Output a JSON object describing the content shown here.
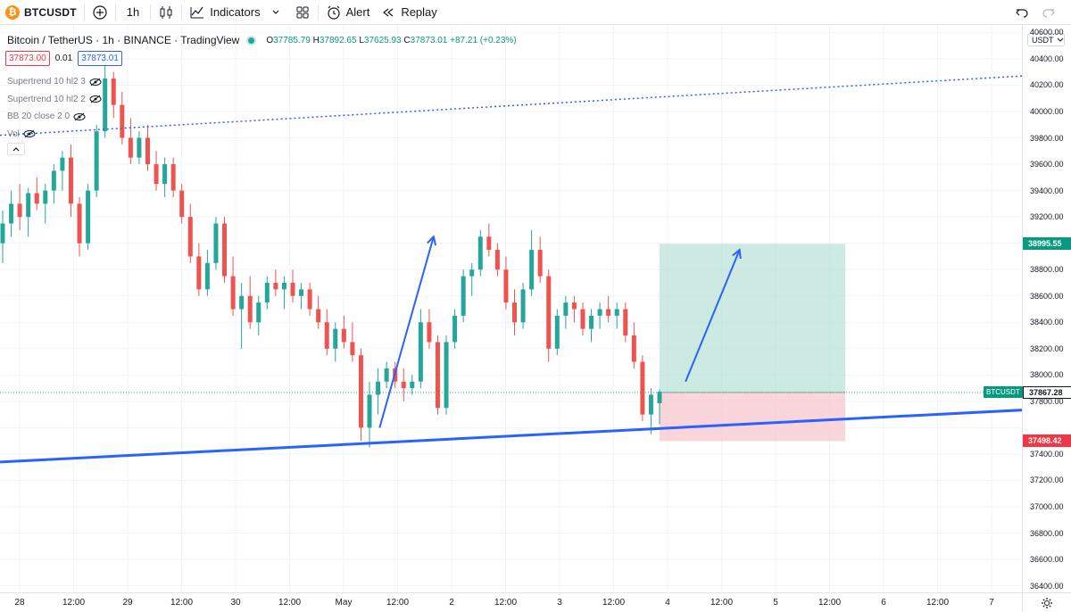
{
  "toolbar": {
    "symbol": "BTCUSDT",
    "interval": "1h",
    "indicators_label": "Indicators",
    "alert_label": "Alert",
    "replay_label": "Replay"
  },
  "legend": {
    "title": "Bitcoin / TetherUS · 1h · BINANCE · TradingView",
    "open_key": "O",
    "open": "37785.79",
    "high_key": "H",
    "high": "37892.65",
    "low_key": "L",
    "low": "37625.93",
    "close_key": "C",
    "close": "37873.01",
    "change": "+87.21 (+0.23%)",
    "sell_price": "37873.00",
    "spread": "0.01",
    "buy_price": "37873.01",
    "indicators": [
      "Supertrend 10 hl2 3",
      "Supertrend 10 hl2 2",
      "BB 20 close 2 0",
      "Vol"
    ]
  },
  "price_axis": {
    "currency": "USDT",
    "ticks": [
      "40600.00",
      "40400.00",
      "40200.00",
      "40000.00",
      "39800.00",
      "39600.00",
      "39400.00",
      "39200.00",
      "38800.00",
      "38600.00",
      "38400.00",
      "38200.00",
      "38000.00",
      "37800.00",
      "37400.00",
      "37200.00",
      "37000.00",
      "36800.00",
      "36600.00",
      "36400.00"
    ],
    "target_label": "38995.55",
    "current_label": "37867.28",
    "stop_label": "37498.42",
    "symbol_tag": "BTCUSDT"
  },
  "time_axis": {
    "ticks": [
      "28",
      "12:00",
      "29",
      "12:00",
      "30",
      "12:00",
      "May",
      "12:00",
      "2",
      "12:00",
      "3",
      "12:00",
      "4",
      "12:00",
      "5",
      "12:00",
      "6",
      "12:00",
      "7"
    ]
  },
  "colors": {
    "up": "#26a69a",
    "down": "#ef5350",
    "trendline": "#2962ff",
    "target_zone": "#b2dfd2",
    "stop_zone": "#f8c8cf"
  },
  "chart_data": {
    "type": "candlestick",
    "title": "Bitcoin / TetherUS · 1h · BINANCE",
    "interval": "1h",
    "ylim": [
      36350,
      40650
    ],
    "candles": [
      [
        39000,
        39250,
        38850,
        39150
      ],
      [
        39150,
        39400,
        39050,
        39300
      ],
      [
        39300,
        39450,
        39100,
        39200
      ],
      [
        39200,
        39420,
        39050,
        39380
      ],
      [
        39380,
        39500,
        39250,
        39300
      ],
      [
        39300,
        39450,
        39150,
        39400
      ],
      [
        39400,
        39600,
        39300,
        39550
      ],
      [
        39550,
        39700,
        39400,
        39650
      ],
      [
        39650,
        39750,
        39200,
        39300
      ],
      [
        39300,
        39350,
        38900,
        39000
      ],
      [
        39000,
        39450,
        38950,
        39400
      ],
      [
        39400,
        39900,
        39350,
        39850
      ],
      [
        39850,
        40350,
        39800,
        40250
      ],
      [
        40250,
        40300,
        39950,
        40050
      ],
      [
        40050,
        40150,
        39750,
        39800
      ],
      [
        39800,
        39950,
        39600,
        39650
      ],
      [
        39650,
        39850,
        39600,
        39800
      ],
      [
        39800,
        39900,
        39550,
        39600
      ],
      [
        39600,
        39700,
        39400,
        39450
      ],
      [
        39450,
        39650,
        39350,
        39600
      ],
      [
        39600,
        39650,
        39350,
        39400
      ],
      [
        39400,
        39450,
        39150,
        39200
      ],
      [
        39200,
        39300,
        38850,
        38900
      ],
      [
        38900,
        39000,
        38600,
        38650
      ],
      [
        38650,
        38950,
        38600,
        38850
      ],
      [
        38850,
        39200,
        38800,
        39150
      ],
      [
        39150,
        39200,
        38700,
        38750
      ],
      [
        38750,
        38900,
        38450,
        38500
      ],
      [
        38500,
        38700,
        38200,
        38600
      ],
      [
        38600,
        38750,
        38350,
        38400
      ],
      [
        38400,
        38600,
        38300,
        38550
      ],
      [
        38550,
        38750,
        38500,
        38700
      ],
      [
        38700,
        38800,
        38600,
        38650
      ],
      [
        38650,
        38750,
        38500,
        38700
      ],
      [
        38700,
        38800,
        38550,
        38600
      ],
      [
        38600,
        38700,
        38500,
        38650
      ],
      [
        38650,
        38700,
        38450,
        38500
      ],
      [
        38500,
        38600,
        38350,
        38400
      ],
      [
        38400,
        38500,
        38150,
        38200
      ],
      [
        38200,
        38400,
        38100,
        38350
      ],
      [
        38350,
        38450,
        38200,
        38250
      ],
      [
        38250,
        38400,
        38100,
        38150
      ],
      [
        38150,
        38200,
        37500,
        37600
      ],
      [
        37600,
        37950,
        37450,
        37850
      ],
      [
        37850,
        38050,
        37700,
        37950
      ],
      [
        37950,
        38100,
        37900,
        38050
      ],
      [
        38050,
        38100,
        37900,
        37950
      ],
      [
        37950,
        38050,
        37800,
        37900
      ],
      [
        37900,
        38000,
        37850,
        37950
      ],
      [
        37950,
        38500,
        37900,
        38400
      ],
      [
        38400,
        38500,
        38200,
        38250
      ],
      [
        38250,
        38300,
        37700,
        37750
      ],
      [
        37750,
        38300,
        37700,
        38250
      ],
      [
        38250,
        38500,
        38200,
        38450
      ],
      [
        38450,
        38800,
        38400,
        38750
      ],
      [
        38750,
        38850,
        38600,
        38800
      ],
      [
        38800,
        39100,
        38750,
        39050
      ],
      [
        39050,
        39150,
        38900,
        38950
      ],
      [
        38950,
        39000,
        38750,
        38800
      ],
      [
        38800,
        38900,
        38500,
        38550
      ],
      [
        38550,
        38650,
        38300,
        38400
      ],
      [
        38400,
        38700,
        38350,
        38650
      ],
      [
        38650,
        39100,
        38600,
        38950
      ],
      [
        38950,
        39050,
        38700,
        38750
      ],
      [
        38750,
        38800,
        38100,
        38200
      ],
      [
        38200,
        38500,
        38150,
        38450
      ],
      [
        38450,
        38600,
        38350,
        38550
      ],
      [
        38550,
        38600,
        38400,
        38500
      ],
      [
        38500,
        38550,
        38300,
        38350
      ],
      [
        38350,
        38500,
        38250,
        38450
      ],
      [
        38450,
        38550,
        38350,
        38500
      ],
      [
        38500,
        38600,
        38400,
        38450
      ],
      [
        38450,
        38550,
        38350,
        38500
      ],
      [
        38500,
        38550,
        38250,
        38300
      ],
      [
        38300,
        38400,
        38050,
        38100
      ],
      [
        38100,
        38150,
        37650,
        37700
      ],
      [
        37700,
        37900,
        37550,
        37850
      ],
      [
        37785.79,
        37892.65,
        37625.93,
        37873.01
      ]
    ],
    "trendlines": [
      {
        "name": "support",
        "style": "solid",
        "from": [
          "Apr 27 20:00",
          37340
        ],
        "to": [
          "May 7 12:00",
          37743
        ]
      },
      {
        "name": "resistance",
        "style": "dotted",
        "from": [
          "Apr 27 20:00",
          39820
        ],
        "to": [
          "May 7 12:00",
          40280
        ]
      }
    ],
    "arrows": [
      {
        "from": [
          "May 1 08:00",
          37600
        ],
        "to": [
          "May 1 20:00",
          39050
        ]
      },
      {
        "from": [
          "May 4 04:00",
          37950
        ],
        "to": [
          "May 4 16:00",
          38950
        ]
      }
    ],
    "position": {
      "side": "long",
      "entry": 37867.28,
      "target": 38995.55,
      "stop": 37498.42
    }
  }
}
